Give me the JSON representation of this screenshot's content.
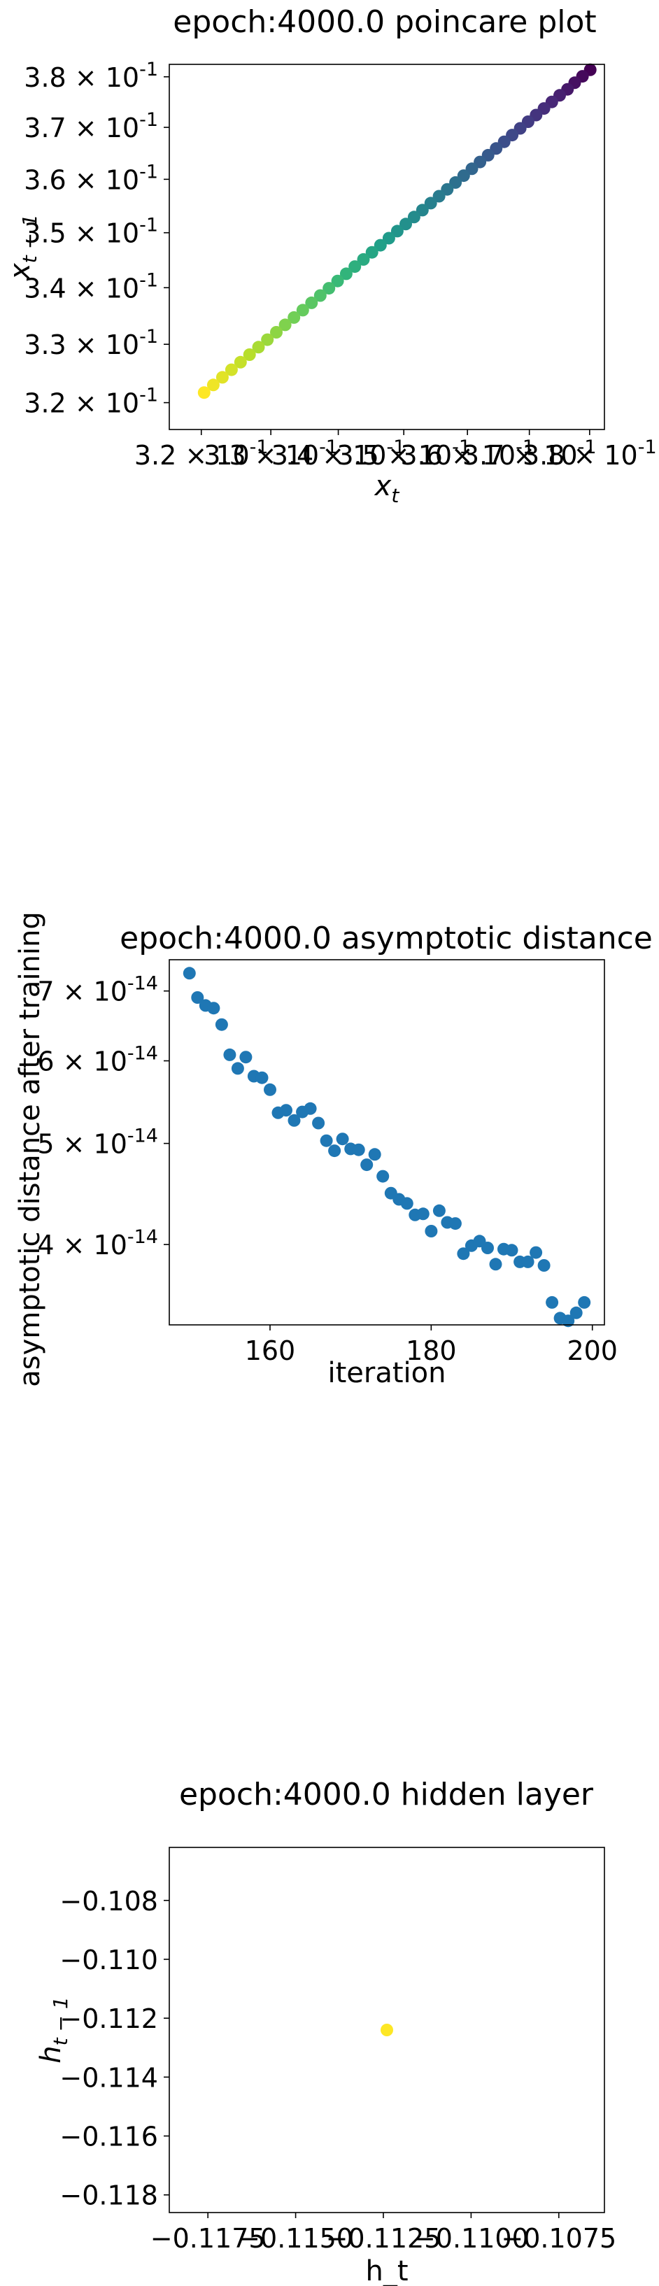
{
  "chart_data": [
    {
      "type": "scatter",
      "title": "epoch:4000.0 poincare plot",
      "xlabel": "x_t",
      "ylabel": "x_{t-1}",
      "xscale": "log",
      "yscale": "log",
      "xlim": [
        0.3155,
        0.3825
      ],
      "ylim": [
        0.3155,
        0.3825
      ],
      "x_ticks": [
        {
          "value": 0.32,
          "label": "3.2 × 10^{-1}"
        },
        {
          "value": 0.33,
          "label": "3.3 × 10^{-1}"
        },
        {
          "value": 0.34,
          "label": "3.4 × 10^{-1}"
        },
        {
          "value": 0.35,
          "label": "3.5 × 10^{-1}"
        },
        {
          "value": 0.36,
          "label": "3.6 × 10^{-1}"
        },
        {
          "value": 0.37,
          "label": "3.7 × 10^{-1}"
        },
        {
          "value": 0.38,
          "label": "3.8 × 10^{-1}"
        }
      ],
      "y_ticks": [
        {
          "value": 0.32,
          "label": "3.2 × 10^{-1}"
        },
        {
          "value": 0.33,
          "label": "3.3 × 10^{-1}"
        },
        {
          "value": 0.34,
          "label": "3.4 × 10^{-1}"
        },
        {
          "value": 0.35,
          "label": "3.5 × 10^{-1}"
        },
        {
          "value": 0.36,
          "label": "3.6 × 10^{-1}"
        },
        {
          "value": 0.37,
          "label": "3.7 × 10^{-1}"
        },
        {
          "value": 0.38,
          "label": "3.8 × 10^{-1}"
        }
      ],
      "colormap": "viridis",
      "x": [
        0.3801,
        0.3788,
        0.3775,
        0.3763,
        0.375,
        0.3737,
        0.3724,
        0.3711,
        0.3698,
        0.3685,
        0.3672,
        0.3659,
        0.3646,
        0.3633,
        0.362,
        0.3607,
        0.3594,
        0.3581,
        0.3568,
        0.3555,
        0.3542,
        0.3529,
        0.3516,
        0.3503,
        0.349,
        0.3477,
        0.3464,
        0.3451,
        0.3438,
        0.3425,
        0.3412,
        0.3399,
        0.3386,
        0.3373,
        0.336,
        0.3347,
        0.3334,
        0.3321,
        0.3308,
        0.3295,
        0.3282,
        0.3269,
        0.3256,
        0.3243,
        0.323,
        0.3217,
        0.3204
      ],
      "y": [
        0.3814,
        0.3801,
        0.3788,
        0.3775,
        0.3763,
        0.375,
        0.3737,
        0.3724,
        0.3711,
        0.3698,
        0.3685,
        0.3672,
        0.3659,
        0.3646,
        0.3633,
        0.362,
        0.3607,
        0.3594,
        0.3581,
        0.3568,
        0.3555,
        0.3542,
        0.3529,
        0.3516,
        0.3503,
        0.349,
        0.3477,
        0.3464,
        0.3451,
        0.3438,
        0.3425,
        0.3412,
        0.3399,
        0.3386,
        0.3373,
        0.336,
        0.3347,
        0.3334,
        0.3321,
        0.3308,
        0.3295,
        0.3282,
        0.3269,
        0.3256,
        0.3243,
        0.323,
        0.3217
      ]
    },
    {
      "type": "scatter",
      "title": "epoch:4000.0 asymptotic distance",
      "xlabel": "iteration",
      "ylabel": "asymptotic distance after training",
      "yscale": "log",
      "xlim": [
        147.5,
        201.5
      ],
      "ylim": [
        3.35e-14,
        7.5e-14
      ],
      "x_ticks": [
        {
          "value": 160,
          "label": "160"
        },
        {
          "value": 180,
          "label": "180"
        },
        {
          "value": 200,
          "label": "200"
        }
      ],
      "y_ticks": [
        {
          "value": 4e-14,
          "label": "4 × 10^{-14}"
        },
        {
          "value": 5e-14,
          "label": "5 × 10^{-14}"
        },
        {
          "value": 6e-14,
          "label": "6 × 10^{-14}"
        },
        {
          "value": 7e-14,
          "label": "7 × 10^{-14}"
        }
      ],
      "color": "#1f77b4",
      "x": [
        150,
        151,
        152,
        153,
        154,
        155,
        156,
        157,
        158,
        159,
        160,
        161,
        162,
        163,
        164,
        165,
        166,
        167,
        168,
        169,
        170,
        171,
        172,
        173,
        174,
        175,
        176,
        177,
        178,
        179,
        180,
        181,
        182,
        183,
        184,
        185,
        186,
        187,
        188,
        189,
        190,
        191,
        192,
        193,
        194,
        195,
        196,
        197,
        198,
        199
      ],
      "y": [
        7.28e-14,
        6.9e-14,
        6.78e-14,
        6.74e-14,
        6.5e-14,
        6.08e-14,
        5.9e-14,
        6.05e-14,
        5.8e-14,
        5.78e-14,
        5.63e-14,
        5.35e-14,
        5.38e-14,
        5.26e-14,
        5.36e-14,
        5.4e-14,
        5.23e-14,
        5.03e-14,
        4.92e-14,
        5.05e-14,
        4.94e-14,
        4.93e-14,
        4.77e-14,
        4.88e-14,
        4.65e-14,
        4.48e-14,
        4.42e-14,
        4.38e-14,
        4.27e-14,
        4.28e-14,
        4.12e-14,
        4.31e-14,
        4.2e-14,
        4.19e-14,
        3.92e-14,
        3.99e-14,
        4.03e-14,
        3.97e-14,
        3.83e-14,
        3.96e-14,
        3.95e-14,
        3.85e-14,
        3.85e-14,
        3.93e-14,
        3.82e-14,
        3.52e-14,
        3.4e-14,
        3.38e-14,
        3.44e-14,
        3.52e-14
      ]
    },
    {
      "type": "scatter",
      "title": "epoch:4000.0 hidden layer",
      "xlabel": "h_t",
      "ylabel": "h_{t-1}",
      "xlim": [
        -0.1186,
        -0.1062
      ],
      "ylim": [
        -0.1186,
        -0.1062
      ],
      "x_ticks": [
        {
          "value": -0.1175,
          "label": "−0.1175"
        },
        {
          "value": -0.115,
          "label": "−0.1150"
        },
        {
          "value": -0.1125,
          "label": "−0.1125"
        },
        {
          "value": -0.11,
          "label": "−0.1100"
        },
        {
          "value": -0.1075,
          "label": "−0.1075"
        }
      ],
      "y_ticks": [
        {
          "value": -0.108,
          "label": "−0.108"
        },
        {
          "value": -0.11,
          "label": "−0.110"
        },
        {
          "value": -0.112,
          "label": "−0.112"
        },
        {
          "value": -0.114,
          "label": "−0.114"
        },
        {
          "value": -0.116,
          "label": "−0.116"
        },
        {
          "value": -0.118,
          "label": "−0.118"
        }
      ],
      "color": "#fde725",
      "x": [
        -0.1124
      ],
      "y": [
        -0.1124
      ]
    }
  ]
}
